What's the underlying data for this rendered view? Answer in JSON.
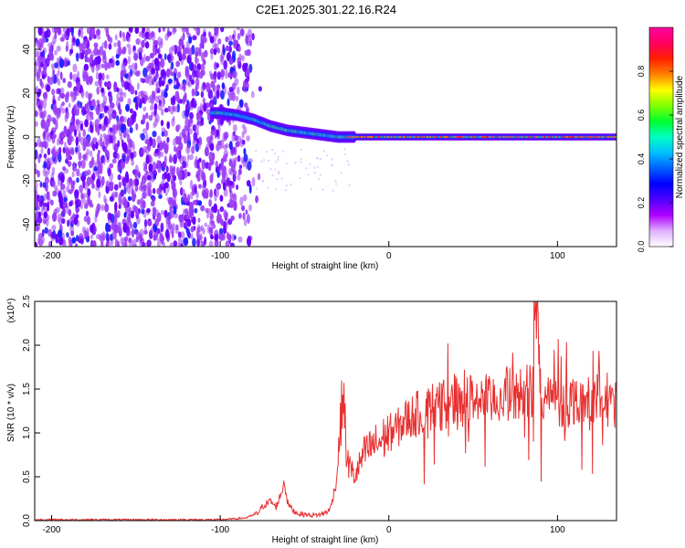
{
  "title": "C2E1.2025.301.22.16.R24",
  "colors": {
    "snr_line": "#e83030",
    "frame": "#000000",
    "colormap": [
      "#ffffff",
      "#b070f0",
      "#7000ff",
      "#0000ff",
      "#00a0ff",
      "#00ffff",
      "#00ff60",
      "#80ff00",
      "#ffff00",
      "#ff8000",
      "#ff0000",
      "#ff00ff"
    ]
  },
  "chart_data": [
    {
      "type": "heatmap",
      "title": "C2E1.2025.301.22.16.R24",
      "xlabel": "Height of straight line (km)",
      "ylabel": "Frequency (Hz)",
      "xlim": [
        -210,
        135
      ],
      "ylim": [
        -50,
        50
      ],
      "x_ticks": [
        -200,
        -100,
        0,
        100
      ],
      "y_ticks": [
        -40,
        -20,
        0,
        20,
        40
      ],
      "colorbar": {
        "label": "Normalized spectral amplitude",
        "range": [
          0,
          1
        ],
        "ticks": [
          0,
          0.2,
          0.4,
          0.6,
          0.8
        ]
      },
      "ridge": {
        "description_points_x": [
          -100,
          -90,
          -80,
          -70,
          -60,
          -50,
          -40,
          -30,
          -20,
          -10,
          0,
          20,
          40,
          60,
          80,
          100,
          120,
          135
        ],
        "frequency_hz": [
          11,
          10,
          8,
          5,
          3,
          2,
          1,
          0,
          0,
          0,
          0,
          0,
          0,
          0,
          0,
          0,
          0,
          0
        ]
      },
      "noise_region_x": [
        -210,
        -80
      ]
    },
    {
      "type": "line",
      "xlabel": "Height of straight line (km)",
      "ylabel": "SNR (10 * v/v)",
      "y_multiplier": "(x10⁴)",
      "xlim": [
        -210,
        135
      ],
      "ylim": [
        0,
        2.5
      ],
      "x_ticks": [
        -200,
        -100,
        0,
        100
      ],
      "y_ticks": [
        0.0,
        0.5,
        1.0,
        1.5,
        2.0,
        2.5
      ],
      "series": [
        {
          "x": [
            -210,
            -180,
            -150,
            -120,
            -100,
            -85,
            -78,
            -74,
            -70,
            -67,
            -64,
            -62,
            -60,
            -57,
            -54,
            -50,
            -45,
            -40,
            -35,
            -31,
            -29,
            -27,
            -25,
            -23,
            -20,
            -15,
            -10,
            -5,
            0,
            5,
            10,
            15,
            20,
            25,
            30,
            35,
            40,
            45,
            50,
            55,
            60,
            65,
            70,
            75,
            80,
            85,
            88,
            90,
            95,
            100,
            105,
            110,
            115,
            120,
            125,
            130,
            135
          ],
          "values": [
            0.01,
            0.01,
            0.01,
            0.01,
            0.01,
            0.03,
            0.08,
            0.18,
            0.22,
            0.15,
            0.3,
            0.45,
            0.2,
            0.12,
            0.08,
            0.07,
            0.06,
            0.07,
            0.12,
            0.45,
            1.0,
            1.5,
            0.7,
            0.6,
            0.5,
            0.75,
            0.85,
            0.9,
            1.0,
            1.05,
            1.15,
            1.2,
            1.25,
            1.3,
            1.3,
            1.35,
            1.4,
            1.35,
            1.4,
            1.4,
            1.35,
            1.4,
            1.45,
            1.4,
            1.5,
            1.5,
            2.45,
            1.3,
            1.4,
            1.35,
            1.3,
            1.4,
            1.35,
            1.3,
            1.45,
            1.35,
            1.3
          ]
        }
      ]
    }
  ]
}
